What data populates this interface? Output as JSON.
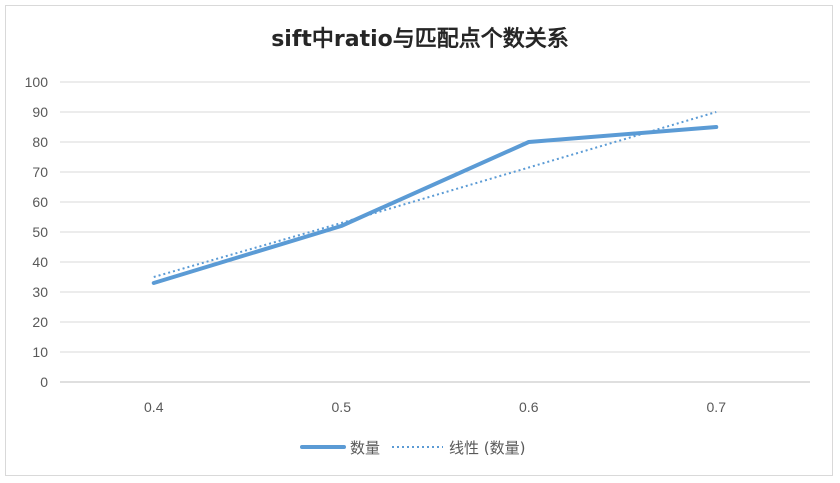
{
  "chart_data": {
    "type": "line",
    "title": "sift中ratio与匹配点个数关系",
    "xlabel": "",
    "ylabel": "",
    "categories": [
      "0.4",
      "0.5",
      "0.6",
      "0.7"
    ],
    "series": [
      {
        "name": "数量",
        "values": [
          33,
          52,
          80,
          85
        ],
        "color": "#5b9bd5",
        "style": "solid"
      },
      {
        "name": "线性 (数量)",
        "values": [
          35,
          53,
          71.5,
          90
        ],
        "color": "#5b9bd5",
        "style": "dotted",
        "trendline": "linear"
      }
    ],
    "ylim": [
      0,
      100
    ],
    "yticks": [
      0,
      10,
      20,
      30,
      40,
      50,
      60,
      70,
      80,
      90,
      100
    ],
    "grid": true,
    "legend": "bottom"
  }
}
